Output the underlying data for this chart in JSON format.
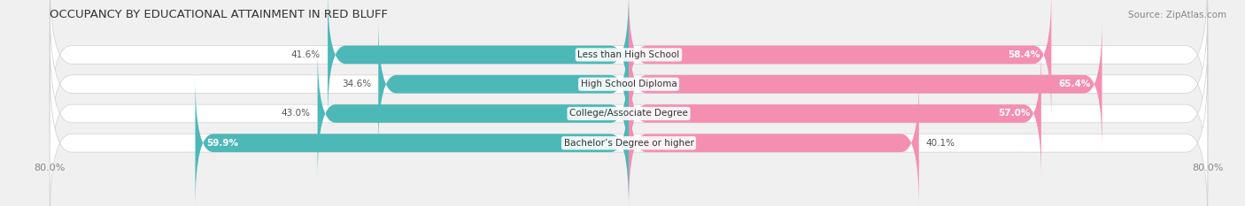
{
  "title": "OCCUPANCY BY EDUCATIONAL ATTAINMENT IN RED BLUFF",
  "source": "Source: ZipAtlas.com",
  "categories": [
    "Less than High School",
    "High School Diploma",
    "College/Associate Degree",
    "Bachelor’s Degree or higher"
  ],
  "owner_values": [
    41.6,
    34.6,
    43.0,
    59.9
  ],
  "renter_values": [
    58.4,
    65.4,
    57.0,
    40.1
  ],
  "owner_color": "#4db8b8",
  "renter_color": "#f48fb1",
  "xlim_left": -80,
  "xlim_right": 80,
  "bar_height": 0.62,
  "row_bg_color": "#e8e8e8",
  "title_fontsize": 9.5,
  "source_fontsize": 7.5,
  "legend_fontsize": 8,
  "category_fontsize": 7.5,
  "value_fontsize": 7.5,
  "fig_bg_color": "#f0f0f0"
}
